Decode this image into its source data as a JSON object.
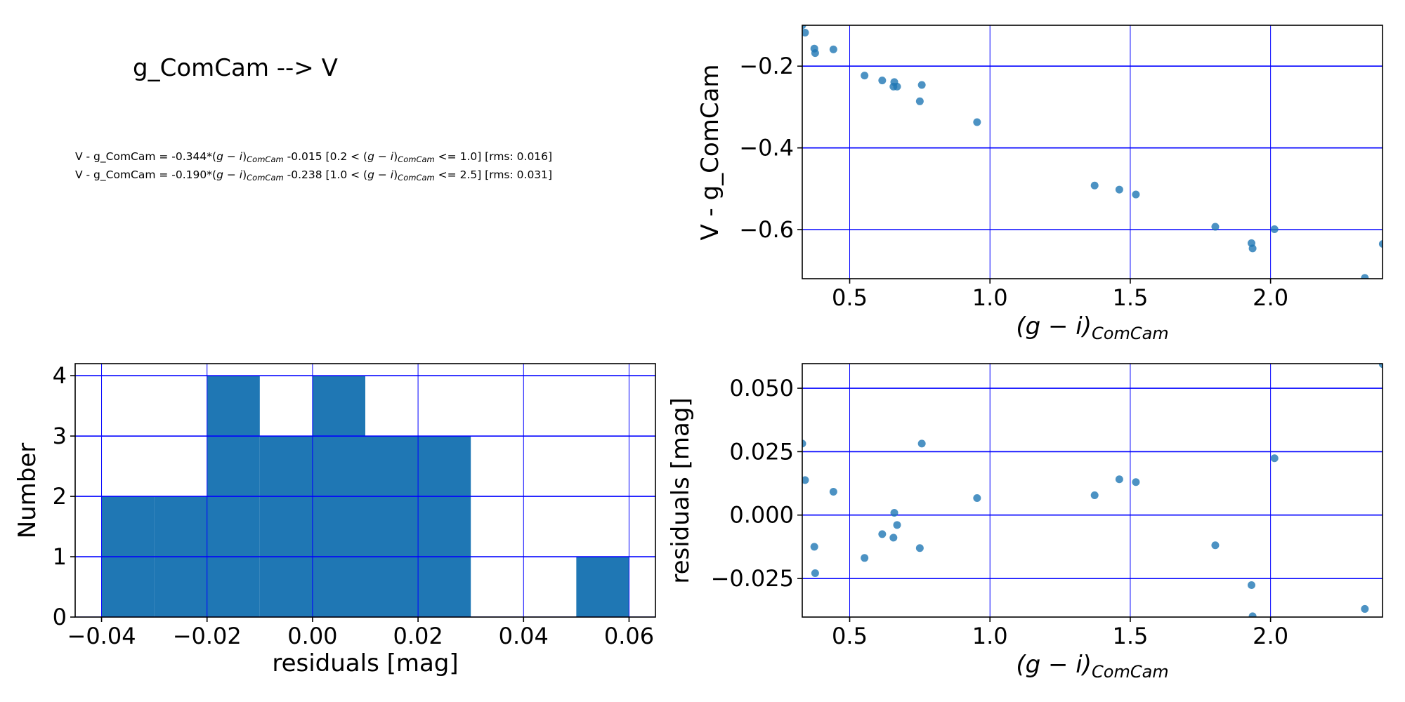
{
  "title": "g_ComCam --> V",
  "equations": [
    {
      "lhs": "V - g_ComCam",
      "slope": "-0.344",
      "intercept": "-0.015",
      "range_low": "0.2",
      "range_high": "1.0",
      "rms": "0.016"
    },
    {
      "lhs": "V - g_ComCam",
      "slope": "-0.190",
      "intercept": "-0.238",
      "range_low": "1.0",
      "range_high": "2.5",
      "rms": "0.031"
    }
  ],
  "colors": {
    "points": "#1f77b4",
    "bars": "#1f77b4",
    "grid": "#0000ff",
    "axes": "#000000"
  },
  "chart_data": [
    {
      "id": "fit",
      "type": "scatter",
      "xlabel": "(g − i)_ComCam",
      "ylabel": "V - g_ComCam",
      "xlim": [
        0.331,
        2.399
      ],
      "ylim": [
        -0.72,
        -0.1
      ],
      "xticks": [
        0.5,
        1.0,
        1.5,
        2.0
      ],
      "xtick_labels": [
        "0.5",
        "1.0",
        "1.5",
        "2.0"
      ],
      "yticks": [
        -0.2,
        -0.4,
        -0.6
      ],
      "ytick_labels": [
        "−0.2",
        "−0.4",
        "−0.6"
      ],
      "grid": true,
      "x": [
        0.331,
        0.341,
        0.374,
        0.377,
        0.442,
        0.553,
        0.616,
        0.659,
        0.656,
        0.669,
        0.757,
        0.75,
        0.954,
        1.373,
        1.461,
        1.52,
        1.803,
        1.932,
        1.936,
        2.014,
        2.4,
        2.336
      ],
      "y": [
        -0.1,
        -0.118,
        -0.157,
        -0.168,
        -0.159,
        -0.223,
        -0.235,
        -0.239,
        -0.25,
        -0.25,
        -0.246,
        -0.286,
        -0.337,
        -0.492,
        -0.502,
        -0.514,
        -0.593,
        -0.633,
        -0.646,
        -0.599,
        -0.635,
        -0.718
      ]
    },
    {
      "id": "hist",
      "type": "bar",
      "xlabel": "residuals [mag]",
      "ylabel": "Number",
      "xlim": [
        -0.045,
        0.065
      ],
      "ylim": [
        0,
        4.2
      ],
      "xticks": [
        -0.04,
        -0.02,
        0.0,
        0.02,
        0.04,
        0.06
      ],
      "xtick_labels": [
        "−0.04",
        "−0.02",
        "0.00",
        "0.02",
        "0.04",
        "0.06"
      ],
      "yticks": [
        0,
        1,
        2,
        3,
        4
      ],
      "ytick_labels": [
        "0",
        "1",
        "2",
        "3",
        "4"
      ],
      "grid": true,
      "bin_edges": [
        -0.04,
        -0.03,
        -0.02,
        -0.01,
        0.0,
        0.01,
        0.02,
        0.03,
        0.04,
        0.05,
        0.06
      ],
      "values": [
        2,
        2,
        4,
        3,
        4,
        3,
        3,
        0,
        0,
        1
      ]
    },
    {
      "id": "resid",
      "type": "scatter",
      "xlabel": "(g − i)_ComCam",
      "ylabel": "residuals [mag]",
      "xlim": [
        0.331,
        2.399
      ],
      "ylim": [
        -0.0402,
        0.0597
      ],
      "xticks": [
        0.5,
        1.0,
        1.5,
        2.0
      ],
      "xtick_labels": [
        "0.5",
        "1.0",
        "1.5",
        "2.0"
      ],
      "yticks": [
        0.05,
        0.025,
        0.0,
        -0.025
      ],
      "ytick_labels": [
        "0.050",
        "0.025",
        "0.000",
        "−0.025"
      ],
      "grid": true,
      "x": [
        2.4,
        0.331,
        0.757,
        2.014,
        0.341,
        1.461,
        1.52,
        0.442,
        0.954,
        1.373,
        0.659,
        0.669,
        0.616,
        0.656,
        0.374,
        0.75,
        1.803,
        0.553,
        0.377,
        1.932,
        2.336,
        1.936
      ],
      "y": [
        0.0595,
        0.0282,
        0.0282,
        0.0224,
        0.0138,
        0.0141,
        0.013,
        0.0092,
        0.0067,
        0.0078,
        0.0009,
        -0.0039,
        -0.0075,
        -0.0089,
        -0.0125,
        -0.013,
        -0.0119,
        -0.0169,
        -0.0229,
        -0.0276,
        -0.037,
        -0.0399
      ]
    }
  ]
}
